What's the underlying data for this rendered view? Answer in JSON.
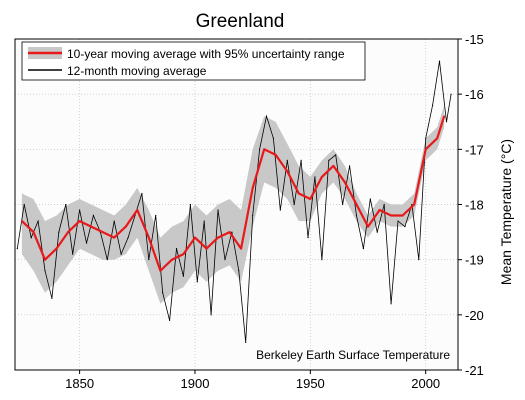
{
  "chart_data": {
    "type": "line",
    "title": "Greenland",
    "ylabel": "Mean Temperature (°C)",
    "xlabel": "",
    "annotation": "Berkeley Earth Surface Temperature",
    "xlim": [
      1822,
      2014
    ],
    "ylim": [
      -21,
      -15
    ],
    "x_ticks": [
      1850,
      1900,
      1950,
      2000
    ],
    "y_ticks": [
      -15,
      -16,
      -17,
      -18,
      -19,
      -20,
      -21
    ],
    "y_axis_side": "right",
    "grid": true,
    "legend": {
      "placement": "top-left",
      "entries": [
        "10-year moving average with 95% uncertainty range",
        "12-month moving average"
      ]
    },
    "colors": {
      "smooth": "#e8191b",
      "band": "#c8c8c8",
      "monthly": "#000000",
      "plot_bg": "#fcfcfc"
    },
    "series": [
      {
        "name": "10-year moving average with 95% uncertainty range",
        "x": [
          1825,
          1830,
          1835,
          1840,
          1845,
          1850,
          1855,
          1860,
          1865,
          1870,
          1875,
          1880,
          1885,
          1890,
          1895,
          1900,
          1905,
          1910,
          1915,
          1920,
          1925,
          1930,
          1935,
          1940,
          1945,
          1950,
          1955,
          1960,
          1965,
          1970,
          1975,
          1980,
          1985,
          1990,
          1995,
          2000,
          2005,
          2008
        ],
        "values": [
          -18.3,
          -18.5,
          -19.0,
          -18.8,
          -18.5,
          -18.3,
          -18.4,
          -18.5,
          -18.6,
          -18.4,
          -18.1,
          -18.6,
          -19.2,
          -19.0,
          -18.9,
          -18.6,
          -18.8,
          -18.6,
          -18.5,
          -18.8,
          -17.7,
          -17.0,
          -17.1,
          -17.4,
          -17.8,
          -17.9,
          -17.5,
          -17.3,
          -17.6,
          -18.0,
          -18.4,
          -18.1,
          -18.2,
          -18.2,
          -18.0,
          -17.0,
          -16.8,
          -16.4
        ],
        "upper": [
          -17.8,
          -17.9,
          -18.3,
          -18.2,
          -18.0,
          -17.9,
          -18.0,
          -18.1,
          -18.2,
          -18.0,
          -17.7,
          -18.1,
          -18.6,
          -18.4,
          -18.3,
          -18.0,
          -18.2,
          -18.0,
          -17.9,
          -18.1,
          -17.0,
          -16.4,
          -16.5,
          -16.9,
          -17.3,
          -17.5,
          -17.2,
          -17.0,
          -17.3,
          -17.8,
          -18.2,
          -17.9,
          -18.0,
          -18.0,
          -17.8,
          -16.8,
          -16.6,
          -16.2
        ],
        "lower": [
          -18.9,
          -19.2,
          -19.6,
          -19.4,
          -19.1,
          -18.8,
          -18.9,
          -19.0,
          -19.0,
          -18.9,
          -18.6,
          -19.2,
          -19.8,
          -19.6,
          -19.5,
          -19.2,
          -19.4,
          -19.2,
          -19.1,
          -19.4,
          -18.4,
          -17.6,
          -17.7,
          -17.9,
          -18.3,
          -18.3,
          -17.8,
          -17.6,
          -17.9,
          -18.3,
          -18.6,
          -18.3,
          -18.4,
          -18.4,
          -18.2,
          -17.2,
          -17.0,
          -16.6
        ]
      },
      {
        "name": "12-month moving average",
        "x": [
          1823,
          1826,
          1829,
          1832,
          1835,
          1838,
          1841,
          1844,
          1847,
          1850,
          1853,
          1856,
          1859,
          1862,
          1865,
          1868,
          1871,
          1874,
          1877,
          1880,
          1883,
          1886,
          1889,
          1892,
          1895,
          1898,
          1901,
          1904,
          1907,
          1910,
          1913,
          1916,
          1919,
          1922,
          1925,
          1928,
          1931,
          1934,
          1937,
          1940,
          1943,
          1946,
          1949,
          1952,
          1955,
          1958,
          1961,
          1964,
          1967,
          1970,
          1973,
          1976,
          1979,
          1982,
          1985,
          1988,
          1991,
          1994,
          1997,
          2000,
          2003,
          2006,
          2009,
          2011
        ],
        "values": [
          -18.8,
          -18.0,
          -18.6,
          -18.3,
          -19.2,
          -19.7,
          -18.5,
          -18.0,
          -18.9,
          -18.1,
          -18.7,
          -18.2,
          -18.5,
          -19.0,
          -18.3,
          -18.9,
          -18.6,
          -18.2,
          -17.8,
          -19.0,
          -18.2,
          -19.6,
          -20.1,
          -18.8,
          -19.3,
          -18.0,
          -19.4,
          -18.3,
          -20.0,
          -18.1,
          -19.0,
          -18.5,
          -19.2,
          -20.5,
          -18.2,
          -17.0,
          -16.4,
          -16.8,
          -18.1,
          -17.2,
          -18.0,
          -17.2,
          -18.6,
          -17.5,
          -19.0,
          -17.2,
          -17.1,
          -18.0,
          -17.3,
          -18.2,
          -18.8,
          -17.9,
          -18.5,
          -18.0,
          -19.8,
          -18.3,
          -18.4,
          -18.0,
          -19.0,
          -16.8,
          -16.2,
          -15.4,
          -16.5,
          -16.0
        ]
      }
    ]
  }
}
